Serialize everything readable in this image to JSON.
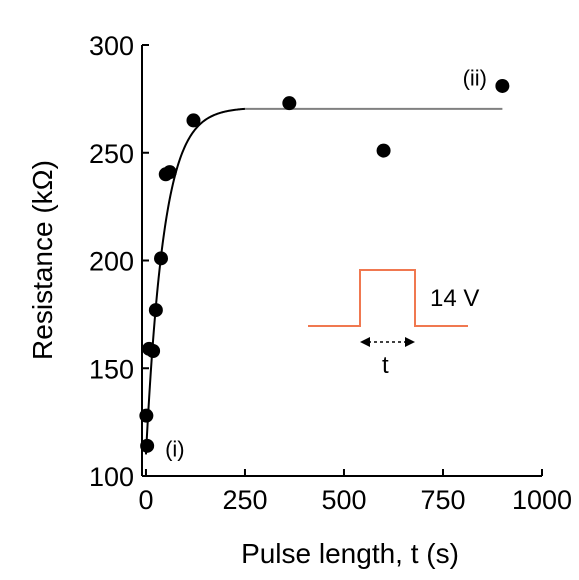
{
  "chart_data": {
    "type": "scatter",
    "xlabel": "Pulse length, t (s)",
    "ylabel": "Resistance (kΩ)",
    "xlim": [
      -10,
      1000
    ],
    "ylim": [
      100,
      300
    ],
    "xticks": [
      0,
      250,
      500,
      750,
      1000
    ],
    "yticks": [
      100,
      150,
      200,
      250,
      300
    ],
    "xtick_labels": [
      "0",
      "250",
      "500",
      "750",
      "1000"
    ],
    "ytick_labels": [
      "100",
      "150",
      "200",
      "250",
      "300"
    ],
    "grid": false,
    "series": [
      {
        "type": "scatter",
        "color": "#000000",
        "points": [
          {
            "x": 1,
            "y": 128
          },
          {
            "x": 3,
            "y": 114
          },
          {
            "x": 8,
            "y": 159
          },
          {
            "x": 18,
            "y": 158
          },
          {
            "x": 25,
            "y": 177
          },
          {
            "x": 38,
            "y": 201
          },
          {
            "x": 50,
            "y": 240
          },
          {
            "x": 60,
            "y": 241
          },
          {
            "x": 120,
            "y": 265
          },
          {
            "x": 362,
            "y": 273
          },
          {
            "x": 600,
            "y": 251
          },
          {
            "x": 900,
            "y": 281
          }
        ]
      },
      {
        "type": "fit-line",
        "color": "#000000",
        "plateau_color": "#808080",
        "model": {
          "form": "exponential-saturation",
          "y0": 110,
          "y_inf": 271,
          "tau": 45
        },
        "x_range": [
          0,
          900
        ]
      }
    ],
    "annotations": [
      {
        "text": "(i)",
        "x": 18,
        "y": 110
      },
      {
        "text": "(ii)",
        "x": 855,
        "y": 283
      }
    ],
    "inset": {
      "description": "voltage pulse waveform",
      "color": "#f07850",
      "voltage_label": "14 V",
      "duration_label": "t"
    }
  }
}
